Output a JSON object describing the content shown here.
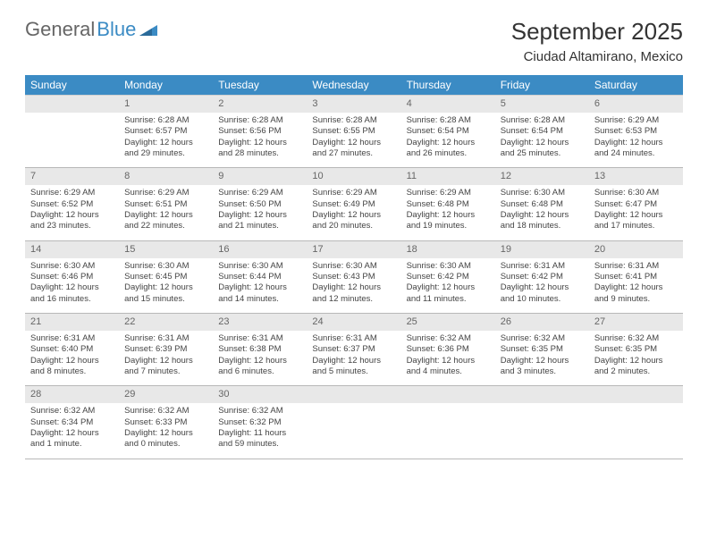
{
  "brand": {
    "part1": "General",
    "part2": "Blue"
  },
  "title": "September 2025",
  "location": "Ciudad Altamirano, Mexico",
  "colors": {
    "header_bg": "#3b8bc4",
    "header_text": "#ffffff",
    "daynum_bg": "#e8e8e8",
    "daynum_text": "#666666",
    "body_text": "#333333",
    "rule": "#b8b8b8"
  },
  "weekdays": [
    "Sunday",
    "Monday",
    "Tuesday",
    "Wednesday",
    "Thursday",
    "Friday",
    "Saturday"
  ],
  "weeks": [
    {
      "nums": [
        "",
        "1",
        "2",
        "3",
        "4",
        "5",
        "6"
      ],
      "cells": [
        "",
        "Sunrise: 6:28 AM\nSunset: 6:57 PM\nDaylight: 12 hours and 29 minutes.",
        "Sunrise: 6:28 AM\nSunset: 6:56 PM\nDaylight: 12 hours and 28 minutes.",
        "Sunrise: 6:28 AM\nSunset: 6:55 PM\nDaylight: 12 hours and 27 minutes.",
        "Sunrise: 6:28 AM\nSunset: 6:54 PM\nDaylight: 12 hours and 26 minutes.",
        "Sunrise: 6:28 AM\nSunset: 6:54 PM\nDaylight: 12 hours and 25 minutes.",
        "Sunrise: 6:29 AM\nSunset: 6:53 PM\nDaylight: 12 hours and 24 minutes."
      ]
    },
    {
      "nums": [
        "7",
        "8",
        "9",
        "10",
        "11",
        "12",
        "13"
      ],
      "cells": [
        "Sunrise: 6:29 AM\nSunset: 6:52 PM\nDaylight: 12 hours and 23 minutes.",
        "Sunrise: 6:29 AM\nSunset: 6:51 PM\nDaylight: 12 hours and 22 minutes.",
        "Sunrise: 6:29 AM\nSunset: 6:50 PM\nDaylight: 12 hours and 21 minutes.",
        "Sunrise: 6:29 AM\nSunset: 6:49 PM\nDaylight: 12 hours and 20 minutes.",
        "Sunrise: 6:29 AM\nSunset: 6:48 PM\nDaylight: 12 hours and 19 minutes.",
        "Sunrise: 6:30 AM\nSunset: 6:48 PM\nDaylight: 12 hours and 18 minutes.",
        "Sunrise: 6:30 AM\nSunset: 6:47 PM\nDaylight: 12 hours and 17 minutes."
      ]
    },
    {
      "nums": [
        "14",
        "15",
        "16",
        "17",
        "18",
        "19",
        "20"
      ],
      "cells": [
        "Sunrise: 6:30 AM\nSunset: 6:46 PM\nDaylight: 12 hours and 16 minutes.",
        "Sunrise: 6:30 AM\nSunset: 6:45 PM\nDaylight: 12 hours and 15 minutes.",
        "Sunrise: 6:30 AM\nSunset: 6:44 PM\nDaylight: 12 hours and 14 minutes.",
        "Sunrise: 6:30 AM\nSunset: 6:43 PM\nDaylight: 12 hours and 12 minutes.",
        "Sunrise: 6:30 AM\nSunset: 6:42 PM\nDaylight: 12 hours and 11 minutes.",
        "Sunrise: 6:31 AM\nSunset: 6:42 PM\nDaylight: 12 hours and 10 minutes.",
        "Sunrise: 6:31 AM\nSunset: 6:41 PM\nDaylight: 12 hours and 9 minutes."
      ]
    },
    {
      "nums": [
        "21",
        "22",
        "23",
        "24",
        "25",
        "26",
        "27"
      ],
      "cells": [
        "Sunrise: 6:31 AM\nSunset: 6:40 PM\nDaylight: 12 hours and 8 minutes.",
        "Sunrise: 6:31 AM\nSunset: 6:39 PM\nDaylight: 12 hours and 7 minutes.",
        "Sunrise: 6:31 AM\nSunset: 6:38 PM\nDaylight: 12 hours and 6 minutes.",
        "Sunrise: 6:31 AM\nSunset: 6:37 PM\nDaylight: 12 hours and 5 minutes.",
        "Sunrise: 6:32 AM\nSunset: 6:36 PM\nDaylight: 12 hours and 4 minutes.",
        "Sunrise: 6:32 AM\nSunset: 6:35 PM\nDaylight: 12 hours and 3 minutes.",
        "Sunrise: 6:32 AM\nSunset: 6:35 PM\nDaylight: 12 hours and 2 minutes."
      ]
    },
    {
      "nums": [
        "28",
        "29",
        "30",
        "",
        "",
        "",
        ""
      ],
      "cells": [
        "Sunrise: 6:32 AM\nSunset: 6:34 PM\nDaylight: 12 hours and 1 minute.",
        "Sunrise: 6:32 AM\nSunset: 6:33 PM\nDaylight: 12 hours and 0 minutes.",
        "Sunrise: 6:32 AM\nSunset: 6:32 PM\nDaylight: 11 hours and 59 minutes.",
        "",
        "",
        "",
        ""
      ]
    }
  ]
}
